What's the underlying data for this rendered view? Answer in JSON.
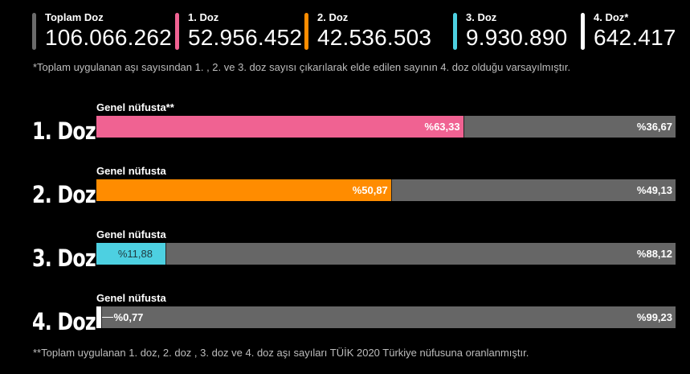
{
  "summary": {
    "items": [
      {
        "label": "Toplam Doz",
        "value": "106.066.262",
        "color": "#6b6b6b"
      },
      {
        "label": "1. Doz",
        "value": "52.956.452",
        "color": "#f06292"
      },
      {
        "label": "2. Doz",
        "value": "42.536.503",
        "color": "#ff8c00"
      },
      {
        "label": "3. Doz",
        "value": "9.930.890",
        "color": "#4dd0e1"
      },
      {
        "label": "4. Doz*",
        "value": "642.417",
        "color": "#ffffff"
      }
    ],
    "note": "*Toplam uygulanan aşı sayısından 1. , 2. ve 3. doz sayısı çıkarılarak elde edilen sayının 4. doz olduğu varsayılmıştır."
  },
  "chart_data": {
    "type": "bar",
    "orientation": "horizontal-stacked",
    "rows": [
      {
        "dose_label": "1. Doz",
        "population_label": "Genel nüfusta**",
        "value": 63.33,
        "value_label": "%63,33",
        "rest": 36.67,
        "rest_label": "%36,67",
        "color": "#f06292"
      },
      {
        "dose_label": "2. Doz",
        "population_label": "Genel nüfusta",
        "value": 50.87,
        "value_label": "%50,87",
        "rest": 49.13,
        "rest_label": "%49,13",
        "color": "#ff8c00"
      },
      {
        "dose_label": "3. Doz",
        "population_label": "Genel nüfusta",
        "value": 11.88,
        "value_label": "%11,88",
        "rest": 88.12,
        "rest_label": "%88,12",
        "color": "#4dd0e1"
      },
      {
        "dose_label": "4. Doz",
        "population_label": "Genel nüfusta",
        "value": 0.77,
        "value_label": "%0,77",
        "rest": 99.23,
        "rest_label": "%99,23",
        "color": "#ffffff"
      }
    ],
    "rest_color": "#666666",
    "xlim": [
      0,
      100
    ]
  },
  "footnote": "**Toplam uygulanan 1. doz, 2. doz , 3. doz ve 4. doz aşı sayıları TÜİK 2020 Türkiye nüfusuna oranlanmıştır."
}
